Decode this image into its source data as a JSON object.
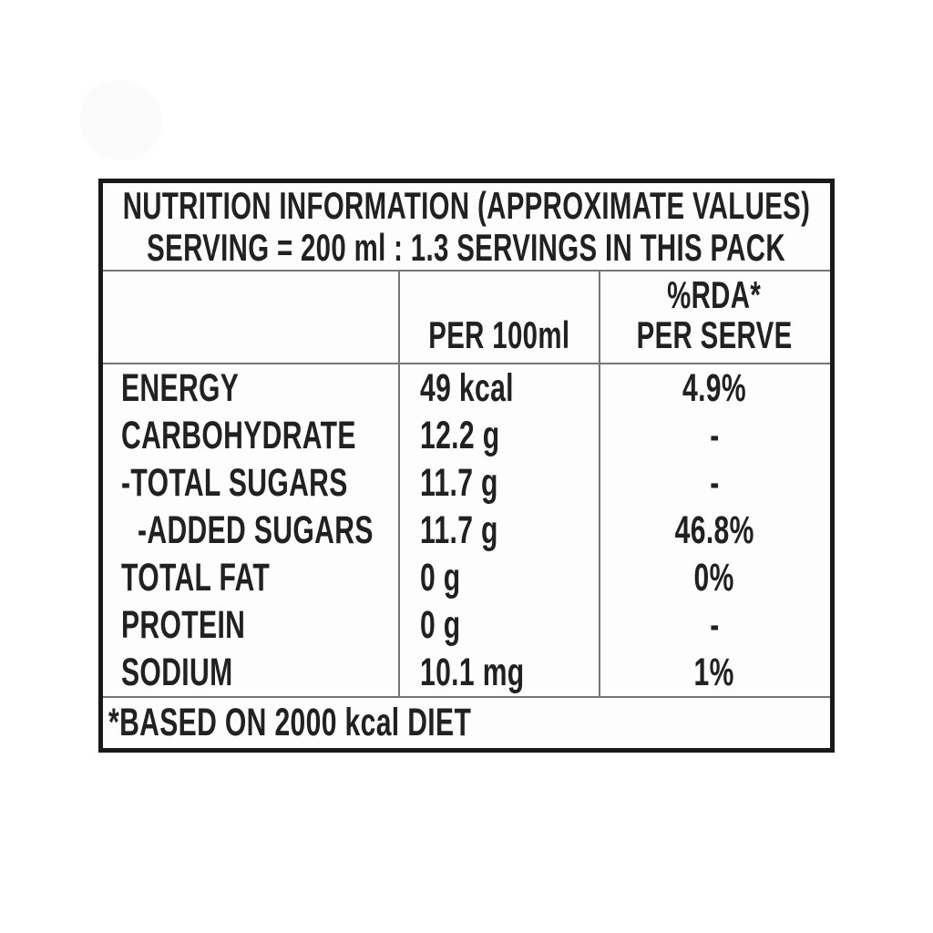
{
  "table": {
    "title": "NUTRITION INFORMATION (APPROXIMATE VALUES)",
    "serving": "SERVING = 200 ml : 1.3 SERVINGS IN THIS PACK",
    "columns": {
      "nutrient": "",
      "per_100ml": "PER 100ml",
      "rda_line1": "%RDA*",
      "rda_line2": "PER SERVE"
    },
    "rows": [
      {
        "name": "ENERGY",
        "per_100ml": "49 kcal",
        "rda_per_serve": "4.9%",
        "indent": false
      },
      {
        "name": "CARBOHYDRATE",
        "per_100ml": "12.2 g",
        "rda_per_serve": "-",
        "indent": false
      },
      {
        "name": "-TOTAL SUGARS",
        "per_100ml": "11.7 g",
        "rda_per_serve": "-",
        "indent": false
      },
      {
        "name": "-ADDED SUGARS",
        "per_100ml": "11.7 g",
        "rda_per_serve": "46.8%",
        "indent": true
      },
      {
        "name": "TOTAL FAT",
        "per_100ml": "0 g",
        "rda_per_serve": "0%",
        "indent": false
      },
      {
        "name": "PROTEIN",
        "per_100ml": "0 g",
        "rda_per_serve": "-",
        "indent": false
      },
      {
        "name": "SODIUM",
        "per_100ml": "10.1 mg",
        "rda_per_serve": "1%",
        "indent": false
      }
    ],
    "footnote": "*BASED ON 2000 kcal DIET"
  },
  "colors": {
    "background": "#ffffff",
    "text": "#212121",
    "outer_border": "#1a1a1a",
    "grid_line": "#757575"
  }
}
